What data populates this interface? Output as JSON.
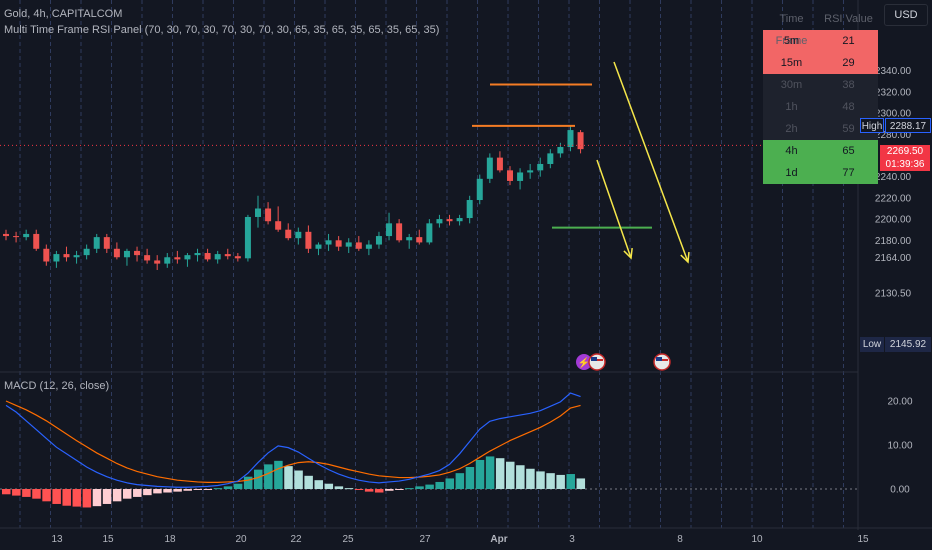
{
  "header": {
    "symbol_line": "Gold, 4h, CAPITALCOM",
    "indicator_line": "Multi Time Frame RSI Panel (70, 30, 70, 30, 70, 30, 70, 30, 65, 35, 65, 35, 65, 35, 65, 35)",
    "macd_line": "MACD (12, 26, close)",
    "currency": "USD"
  },
  "rsi_panel": {
    "headers": [
      "Time Frame",
      "RSI Value"
    ],
    "rows": [
      {
        "tf": "5m",
        "value": "21",
        "bg": "#f26666",
        "fg": "#131722"
      },
      {
        "tf": "15m",
        "value": "29",
        "bg": "#f26666",
        "fg": "#131722"
      },
      {
        "tf": "30m",
        "value": "38",
        "bg": "#1e222d",
        "fg": "#50535e"
      },
      {
        "tf": "1h",
        "value": "48",
        "bg": "#1e222d",
        "fg": "#50535e"
      },
      {
        "tf": "2h",
        "value": "59",
        "bg": "#1e222d",
        "fg": "#50535e"
      },
      {
        "tf": "4h",
        "value": "65",
        "bg": "#4caf50",
        "fg": "#131722"
      },
      {
        "tf": "1d",
        "value": "77",
        "bg": "#4caf50",
        "fg": "#131722"
      }
    ]
  },
  "price_axis": {
    "labels": [
      "2340.00",
      "2320.00",
      "2300.00",
      "2280.00",
      "2240.00",
      "2220.00",
      "2200.00",
      "2180.00",
      "2164.00",
      "2130.50"
    ],
    "high_label": "High",
    "high_value": "2288.17",
    "low_label": "Low",
    "low_value": "2145.92",
    "last_price": "2269.50",
    "countdown": "01:39:36"
  },
  "macd_axis": {
    "labels": [
      "20.00",
      "10.00",
      "0.00"
    ]
  },
  "time_axis": {
    "labels": [
      "13",
      "15",
      "18",
      "20",
      "22",
      "25",
      "27",
      "Apr",
      "3",
      "8",
      "10",
      "15"
    ]
  },
  "colors": {
    "up": "#26a69a",
    "down": "#ef5350",
    "orange": "#f57c24",
    "yellow": "#f5e64a",
    "green": "#4caf50",
    "macd": "#2962ff",
    "signal": "#ff6d00",
    "background": "#131722"
  },
  "chart_data": {
    "type": "candlestick",
    "timeframe": "4h",
    "ohlc": [
      [
        2186,
        2190,
        2180,
        2184
      ],
      [
        2184,
        2188,
        2178,
        2183
      ],
      [
        2183,
        2190,
        2180,
        2186
      ],
      [
        2186,
        2190,
        2170,
        2172
      ],
      [
        2172,
        2176,
        2156,
        2160
      ],
      [
        2160,
        2170,
        2154,
        2167
      ],
      [
        2167,
        2174,
        2160,
        2164
      ],
      [
        2164,
        2170,
        2158,
        2166
      ],
      [
        2166,
        2176,
        2162,
        2172
      ],
      [
        2172,
        2186,
        2168,
        2183
      ],
      [
        2183,
        2186,
        2168,
        2172
      ],
      [
        2172,
        2178,
        2162,
        2164
      ],
      [
        2164,
        2172,
        2156,
        2170
      ],
      [
        2170,
        2174,
        2160,
        2166
      ],
      [
        2166,
        2172,
        2158,
        2161
      ],
      [
        2161,
        2166,
        2152,
        2158
      ],
      [
        2158,
        2168,
        2154,
        2164
      ],
      [
        2164,
        2170,
        2158,
        2162
      ],
      [
        2162,
        2168,
        2155,
        2166
      ],
      [
        2166,
        2172,
        2160,
        2168
      ],
      [
        2168,
        2172,
        2160,
        2162
      ],
      [
        2162,
        2170,
        2158,
        2167
      ],
      [
        2167,
        2172,
        2162,
        2165
      ],
      [
        2165,
        2168,
        2160,
        2163
      ],
      [
        2163,
        2204,
        2160,
        2202
      ],
      [
        2202,
        2222,
        2192,
        2210
      ],
      [
        2210,
        2216,
        2195,
        2198
      ],
      [
        2198,
        2212,
        2188,
        2190
      ],
      [
        2190,
        2196,
        2180,
        2182
      ],
      [
        2182,
        2192,
        2176,
        2188
      ],
      [
        2188,
        2194,
        2168,
        2172
      ],
      [
        2172,
        2178,
        2166,
        2176
      ],
      [
        2176,
        2186,
        2170,
        2180
      ],
      [
        2180,
        2184,
        2170,
        2174
      ],
      [
        2174,
        2182,
        2168,
        2178
      ],
      [
        2178,
        2184,
        2170,
        2172
      ],
      [
        2172,
        2180,
        2166,
        2176
      ],
      [
        2176,
        2188,
        2172,
        2184
      ],
      [
        2184,
        2206,
        2180,
        2196
      ],
      [
        2196,
        2200,
        2178,
        2180
      ],
      [
        2180,
        2186,
        2172,
        2183
      ],
      [
        2183,
        2190,
        2176,
        2178
      ],
      [
        2178,
        2200,
        2176,
        2196
      ],
      [
        2196,
        2204,
        2192,
        2200
      ],
      [
        2200,
        2204,
        2194,
        2198
      ],
      [
        2198,
        2204,
        2194,
        2201
      ],
      [
        2201,
        2222,
        2196,
        2218
      ],
      [
        2218,
        2242,
        2214,
        2238
      ],
      [
        2238,
        2262,
        2234,
        2258
      ],
      [
        2258,
        2264,
        2244,
        2246
      ],
      [
        2246,
        2250,
        2232,
        2236
      ],
      [
        2236,
        2248,
        2228,
        2244
      ],
      [
        2244,
        2252,
        2238,
        2246
      ],
      [
        2246,
        2258,
        2240,
        2252
      ],
      [
        2252,
        2266,
        2248,
        2262
      ],
      [
        2262,
        2272,
        2258,
        2268
      ],
      [
        2268,
        2288,
        2264,
        2284
      ],
      [
        2282,
        2284,
        2262,
        2266
      ]
    ],
    "annotations": {
      "orange_lines": [
        2327,
        2288
      ],
      "green_line": 2192,
      "current_price": 2269.5
    },
    "macd": {
      "histogram": [
        -1.2,
        -1.5,
        -1.8,
        -2.2,
        -2.8,
        -3.4,
        -3.8,
        -4.0,
        -4.2,
        -3.9,
        -3.4,
        -2.8,
        -2.2,
        -1.8,
        -1.4,
        -1.0,
        -0.8,
        -0.6,
        -0.4,
        -0.2,
        -0.1,
        0.2,
        0.6,
        1.2,
        2.8,
        4.4,
        5.6,
        6.4,
        5.2,
        4.2,
        3.0,
        2.0,
        1.2,
        0.6,
        0.2,
        -0.2,
        -0.6,
        -0.8,
        -0.4,
        -0.2,
        0.2,
        0.6,
        1.0,
        1.6,
        2.4,
        3.6,
        5.0,
        6.6,
        7.4,
        7.0,
        6.2,
        5.4,
        4.6,
        4.0,
        3.6,
        3.2,
        3.4,
        2.4
      ],
      "macd": [
        19.0,
        17.5,
        15.5,
        13.5,
        11.5,
        9.5,
        8.0,
        6.5,
        5.0,
        3.8,
        2.8,
        2.0,
        1.4,
        1.0,
        0.8,
        0.6,
        0.5,
        0.4,
        0.4,
        0.5,
        0.6,
        0.8,
        1.2,
        1.8,
        3.6,
        6.0,
        8.2,
        9.8,
        9.4,
        8.4,
        7.0,
        5.6,
        4.4,
        3.4,
        2.6,
        2.0,
        1.6,
        1.4,
        1.6,
        1.8,
        2.2,
        2.8,
        3.4,
        4.2,
        5.6,
        8.0,
        10.8,
        13.6,
        15.4,
        16.0,
        16.4,
        16.8,
        17.2,
        17.8,
        18.8,
        19.8,
        21.8,
        21.0
      ],
      "signal": [
        20.0,
        19.0,
        18.0,
        16.8,
        15.5,
        14.0,
        12.5,
        11.0,
        9.6,
        8.2,
        7.0,
        5.8,
        4.8,
        4.0,
        3.4,
        2.8,
        2.4,
        2.0,
        1.8,
        1.6,
        1.5,
        1.5,
        1.6,
        1.7,
        2.0,
        2.6,
        3.5,
        4.6,
        5.4,
        6.0,
        6.2,
        6.0,
        5.6,
        5.0,
        4.4,
        3.9,
        3.4,
        3.0,
        2.8,
        2.6,
        2.6,
        2.7,
        2.9,
        3.2,
        3.8,
        4.6,
        5.8,
        7.2,
        8.6,
        9.8,
        11.0,
        12.0,
        13.0,
        14.0,
        15.2,
        16.6,
        18.4,
        19.0
      ]
    }
  }
}
